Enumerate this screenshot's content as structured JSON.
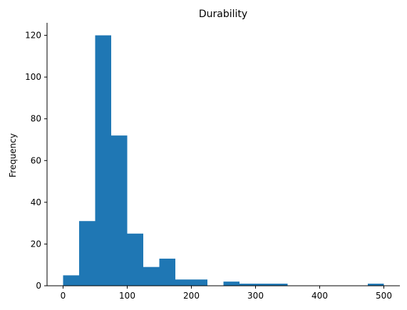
{
  "chart_data": {
    "type": "bar",
    "title": "Durability",
    "xlabel": "",
    "ylabel": "Frequency",
    "bar_color": "#1f77b4",
    "bin_edges": [
      0,
      25,
      50,
      75,
      100,
      125,
      150,
      175,
      200,
      225,
      250,
      275,
      300,
      325,
      350,
      375,
      400,
      425,
      450,
      475,
      500
    ],
    "values": [
      5,
      31,
      120,
      72,
      25,
      9,
      13,
      3,
      3,
      0,
      2,
      1,
      1,
      1,
      0,
      0,
      0,
      0,
      0,
      1
    ],
    "xlim": [
      -25,
      525
    ],
    "ylim": [
      0,
      126
    ],
    "x_ticks": [
      0,
      100,
      200,
      300,
      400,
      500
    ],
    "y_ticks": [
      0,
      20,
      40,
      60,
      80,
      100,
      120
    ],
    "x_tick_labels": [
      "0",
      "100",
      "200",
      "300",
      "400",
      "500"
    ],
    "y_tick_labels": [
      "0",
      "20",
      "40",
      "60",
      "80",
      "100",
      "120"
    ],
    "grid": false,
    "spines": [
      "left",
      "bottom"
    ]
  }
}
